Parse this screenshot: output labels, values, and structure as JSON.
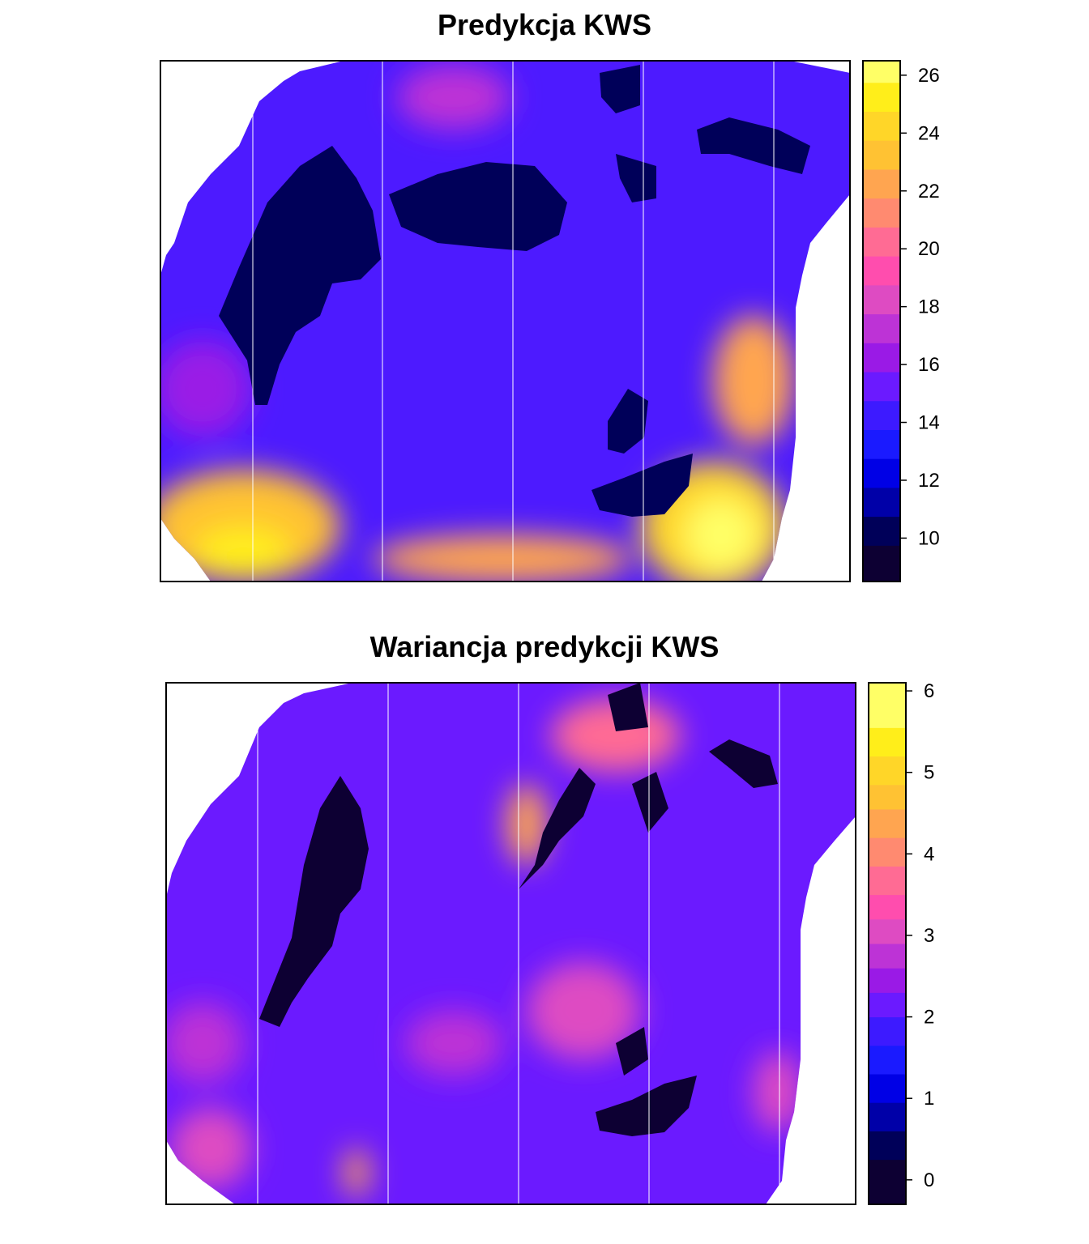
{
  "chart_data": [
    {
      "type": "heatmap",
      "title": "Predykcja KWS",
      "color_scale": {
        "breaks": [
          8.5,
          9.75,
          10.75,
          11.75,
          12.75,
          13.75,
          14.75,
          15.75,
          16.75,
          17.75,
          18.75,
          19.75,
          20.75,
          21.75,
          22.75,
          23.75,
          24.75,
          25.75,
          26.5
        ],
        "colors": [
          "#0d0033",
          "#000059",
          "#0000a8",
          "#0000e6",
          "#1a1aff",
          "#3d1aff",
          "#6b1aff",
          "#9a1ae6",
          "#bd33d6",
          "#de4bc2",
          "#ff4dae",
          "#ff6b94",
          "#ff8a70",
          "#ffa550",
          "#ffc233",
          "#ffd628",
          "#ffee1a",
          "#ffff66"
        ],
        "ticks": [
          "10",
          "12",
          "14",
          "16",
          "18",
          "20",
          "22",
          "24",
          "26"
        ],
        "tick_values": [
          10,
          12,
          14,
          16,
          18,
          20,
          22,
          24,
          26
        ]
      },
      "grid": "vertical lines",
      "xlabel": "",
      "ylabel": ""
    },
    {
      "type": "heatmap",
      "title": "Wariancja predykcji KWS",
      "color_scale": {
        "breaks": [
          -0.3,
          0.25,
          0.6,
          0.95,
          1.3,
          1.65,
          2.0,
          2.3,
          2.6,
          2.9,
          3.2,
          3.5,
          3.85,
          4.2,
          4.55,
          4.85,
          5.2,
          5.55,
          6.1
        ],
        "colors": [
          "#0d0033",
          "#000059",
          "#0000a8",
          "#0000e6",
          "#1a1aff",
          "#3d1aff",
          "#6b1aff",
          "#9a1ae6",
          "#bd33d6",
          "#de4bc2",
          "#ff4dae",
          "#ff6b94",
          "#ff8a70",
          "#ffa550",
          "#ffc233",
          "#ffd628",
          "#ffee1a",
          "#ffff66"
        ],
        "ticks": [
          "0",
          "1",
          "2",
          "3",
          "4",
          "5",
          "6"
        ],
        "tick_values": [
          0,
          1,
          2,
          3,
          4,
          5,
          6
        ]
      },
      "grid": "vertical lines",
      "xlabel": "",
      "ylabel": ""
    }
  ]
}
